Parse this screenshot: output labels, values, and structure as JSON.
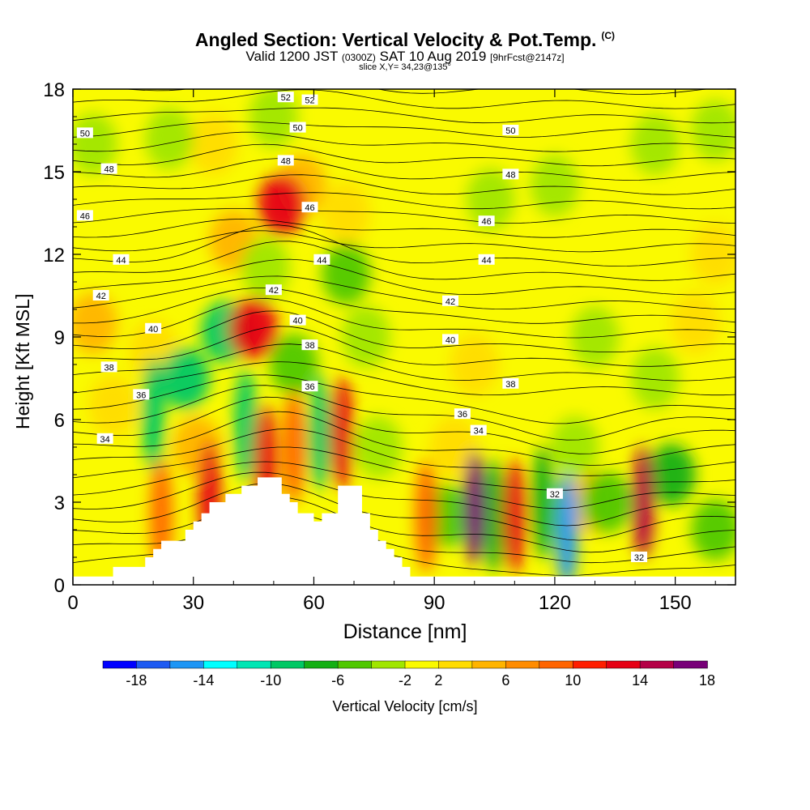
{
  "header": {
    "title": "Angled Section: Vertical Velocity & Pot.Temp.",
    "title_mark": "(C)",
    "valid_a": "Valid 1200 JST",
    "valid_b": "(0300Z)",
    "valid_c": "SAT 10 Aug 2019",
    "valid_d": "[9hrFcst@2147z]",
    "slice": "slice X,Y= 34,23@135°"
  },
  "chart_data": {
    "type": "heatmap",
    "title": "Angled Section: Vertical Velocity & Pot.Temp.",
    "xlabel": "Distance [nm]",
    "ylabel": "Height [Kft MSL]",
    "xlim": [
      0,
      165
    ],
    "ylim": [
      0,
      18
    ],
    "x_ticks": [
      0,
      30,
      60,
      90,
      120,
      150
    ],
    "y_ticks": [
      0,
      3,
      6,
      9,
      12,
      15,
      18
    ],
    "colorbar": {
      "label": "Vertical Velocity [cm/s]",
      "tick_values": [
        -18,
        -14,
        -10,
        -6,
        -2,
        2,
        6,
        10,
        14,
        18
      ],
      "tick_labels": [
        "-18",
        "-14",
        "-10",
        "-6",
        "-2",
        "2",
        "6",
        "10",
        "14",
        "18"
      ],
      "bounds": [
        -20,
        -18,
        -16,
        -14,
        -12,
        -10,
        -8,
        -6,
        -4,
        -2,
        2,
        4,
        6,
        8,
        10,
        12,
        14,
        16,
        18,
        20
      ],
      "colors": [
        "#0000ff",
        "#1e5af2",
        "#1e96f5",
        "#00ffff",
        "#00e6b4",
        "#00c864",
        "#14af14",
        "#50c800",
        "#a0e600",
        "#fafa00",
        "#ffdc00",
        "#ffb400",
        "#ff8c00",
        "#ff6400",
        "#ff1e00",
        "#e60014",
        "#b40046",
        "#780078"
      ]
    },
    "vertical_velocity_cells": [
      {
        "x": 5,
        "y": 16,
        "v": -3
      },
      {
        "x": 35,
        "y": 16,
        "v": 3
      },
      {
        "x": 50,
        "y": 17,
        "v": -4
      },
      {
        "x": 52,
        "y": 13.8,
        "v": 13
      },
      {
        "x": 40,
        "y": 12.5,
        "v": 4
      },
      {
        "x": 24,
        "y": 16.2,
        "v": -3
      },
      {
        "x": 57,
        "y": 14.5,
        "v": 4
      },
      {
        "x": 68,
        "y": 11.3,
        "v": -5
      },
      {
        "x": 68,
        "y": 13.5,
        "v": 3
      },
      {
        "x": 48,
        "y": 11.5,
        "v": -4
      },
      {
        "x": 45,
        "y": 9.3,
        "v": 12
      },
      {
        "x": 38,
        "y": 9.2,
        "v": -9
      },
      {
        "x": 28,
        "y": 7.5,
        "v": -9
      },
      {
        "x": 20,
        "y": 6.2,
        "v": -9
      },
      {
        "x": 20,
        "y": 8.5,
        "v": 3
      },
      {
        "x": 5,
        "y": 9.5,
        "v": 4
      },
      {
        "x": 10,
        "y": 6.5,
        "v": 3
      },
      {
        "x": 22,
        "y": 2.5,
        "v": 9
      },
      {
        "x": 34,
        "y": 3.2,
        "v": 12
      },
      {
        "x": 31,
        "y": 5,
        "v": 5
      },
      {
        "x": 43,
        "y": 5.8,
        "v": -9
      },
      {
        "x": 48,
        "y": 4.5,
        "v": 12
      },
      {
        "x": 55,
        "y": 8,
        "v": -6
      },
      {
        "x": 55,
        "y": 5,
        "v": 8
      },
      {
        "x": 61.5,
        "y": 5.5,
        "v": -10
      },
      {
        "x": 67,
        "y": 5.5,
        "v": 12
      },
      {
        "x": 73,
        "y": 9,
        "v": -4
      },
      {
        "x": 76,
        "y": 5,
        "v": -3
      },
      {
        "x": 88,
        "y": 2.5,
        "v": 9
      },
      {
        "x": 93,
        "y": 2.5,
        "v": -6
      },
      {
        "x": 100,
        "y": 2.8,
        "v": 18
      },
      {
        "x": 105,
        "y": 2.5,
        "v": -8
      },
      {
        "x": 110,
        "y": 2.5,
        "v": 13
      },
      {
        "x": 117,
        "y": 3,
        "v": -8
      },
      {
        "x": 123,
        "y": 2,
        "v": -16
      },
      {
        "x": 130,
        "y": 3,
        "v": 5
      },
      {
        "x": 133,
        "y": 3,
        "v": -6
      },
      {
        "x": 142,
        "y": 3,
        "v": 15
      },
      {
        "x": 149,
        "y": 4,
        "v": -7
      },
      {
        "x": 160,
        "y": 2,
        "v": -5
      },
      {
        "x": 120,
        "y": 14.5,
        "v": -3
      },
      {
        "x": 104,
        "y": 14,
        "v": -3
      },
      {
        "x": 145,
        "y": 16,
        "v": -3
      },
      {
        "x": 160,
        "y": 16.5,
        "v": -3
      },
      {
        "x": 100,
        "y": 8,
        "v": 3
      },
      {
        "x": 130,
        "y": 9,
        "v": -3
      },
      {
        "x": 155,
        "y": 9.5,
        "v": 3
      },
      {
        "x": 145,
        "y": 7.5,
        "v": -3
      },
      {
        "x": 160,
        "y": 12,
        "v": 3
      },
      {
        "x": 125,
        "y": 5,
        "v": -4
      },
      {
        "x": 95,
        "y": 5,
        "v": 3
      }
    ],
    "terrain_nm": [
      0,
      8,
      10,
      16,
      18,
      20,
      22,
      26,
      28,
      30,
      32,
      34,
      36,
      38,
      40,
      42,
      44,
      46,
      50,
      52,
      54,
      56,
      58,
      60,
      62,
      64,
      66,
      70,
      72,
      74,
      76,
      78,
      80,
      82,
      84,
      88,
      165
    ],
    "terrain_kft": [
      0.3,
      0.3,
      0.65,
      0.65,
      1.0,
      1.3,
      1.6,
      1.6,
      2.0,
      2.3,
      2.6,
      3.0,
      3.0,
      3.3,
      3.3,
      3.6,
      3.6,
      3.9,
      3.9,
      3.3,
      3.0,
      2.6,
      2.6,
      2.3,
      2.6,
      2.6,
      3.6,
      3.6,
      2.6,
      2.0,
      1.6,
      1.3,
      1.0,
      0.65,
      0.3,
      0.3,
      0.3
    ],
    "potential_temperature_labels": [
      {
        "text": "52",
        "x": 53,
        "y": 17.7
      },
      {
        "text": "52",
        "x": 59,
        "y": 17.6
      },
      {
        "text": "50",
        "x": 3,
        "y": 16.4
      },
      {
        "text": "50",
        "x": 56,
        "y": 16.6
      },
      {
        "text": "50",
        "x": 109,
        "y": 16.5
      },
      {
        "text": "48",
        "x": 9,
        "y": 15.1
      },
      {
        "text": "48",
        "x": 53,
        "y": 15.4
      },
      {
        "text": "48",
        "x": 109,
        "y": 14.9
      },
      {
        "text": "46",
        "x": 3,
        "y": 13.4
      },
      {
        "text": "46",
        "x": 59,
        "y": 13.7
      },
      {
        "text": "46",
        "x": 103,
        "y": 13.2
      },
      {
        "text": "44",
        "x": 12,
        "y": 11.8
      },
      {
        "text": "44",
        "x": 62,
        "y": 11.8
      },
      {
        "text": "44",
        "x": 103,
        "y": 11.8
      },
      {
        "text": "42",
        "x": 7,
        "y": 10.5
      },
      {
        "text": "42",
        "x": 50,
        "y": 10.7
      },
      {
        "text": "42",
        "x": 94,
        "y": 10.3
      },
      {
        "text": "40",
        "x": 20,
        "y": 9.3
      },
      {
        "text": "40",
        "x": 56,
        "y": 9.6
      },
      {
        "text": "40",
        "x": 94,
        "y": 8.9
      },
      {
        "text": "38",
        "x": 9,
        "y": 7.9
      },
      {
        "text": "38",
        "x": 59,
        "y": 8.7
      },
      {
        "text": "38",
        "x": 109,
        "y": 7.3
      },
      {
        "text": "36",
        "x": 17,
        "y": 6.9
      },
      {
        "text": "36",
        "x": 59,
        "y": 7.2
      },
      {
        "text": "36",
        "x": 97,
        "y": 6.2
      },
      {
        "text": "34",
        "x": 8,
        "y": 5.3
      },
      {
        "text": "34",
        "x": 101,
        "y": 5.6
      },
      {
        "text": "32",
        "x": 120,
        "y": 3.3
      },
      {
        "text": "32",
        "x": 141,
        "y": 1.0
      }
    ]
  }
}
